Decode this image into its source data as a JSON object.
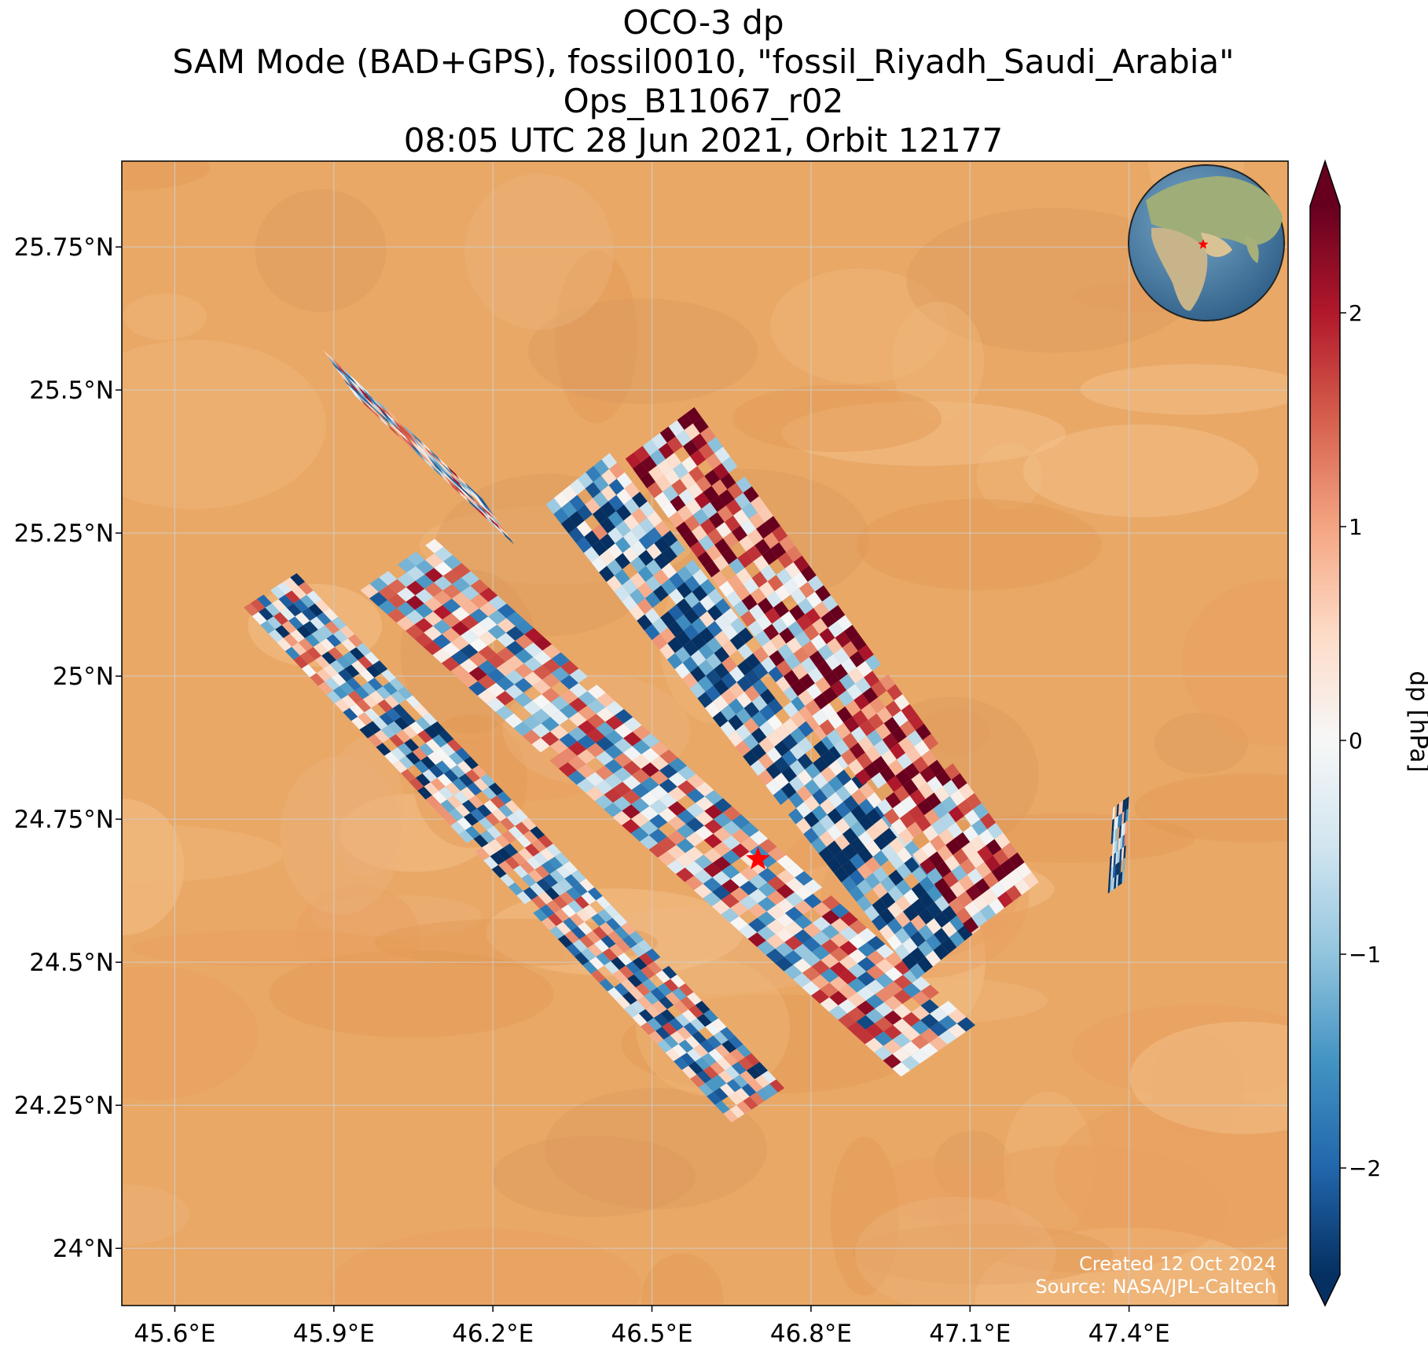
{
  "title": {
    "line1": "OCO-3 dp",
    "line2": "SAM Mode (BAD+GPS), fossil0010, \"fossil_Riyadh_Saudi_Arabia\"",
    "line3": "Ops_B11067_r02",
    "line4": "08:05 UTC 28 Jun 2021, Orbit 12177"
  },
  "map": {
    "x_ticks": [
      {
        "value": 45.6,
        "label": "45.6°E"
      },
      {
        "value": 45.9,
        "label": "45.9°E"
      },
      {
        "value": 46.2,
        "label": "46.2°E"
      },
      {
        "value": 46.5,
        "label": "46.5°E"
      },
      {
        "value": 46.8,
        "label": "46.8°E"
      },
      {
        "value": 47.1,
        "label": "47.1°E"
      },
      {
        "value": 47.4,
        "label": "47.4°E"
      }
    ],
    "y_ticks": [
      {
        "value": 24.0,
        "label": "24°N"
      },
      {
        "value": 24.25,
        "label": "24.25°N"
      },
      {
        "value": 24.5,
        "label": "24.5°N"
      },
      {
        "value": 24.75,
        "label": "24.75°N"
      },
      {
        "value": 25.0,
        "label": "25°N"
      },
      {
        "value": 25.25,
        "label": "25.25°N"
      },
      {
        "value": 25.5,
        "label": "25.5°N"
      },
      {
        "value": 25.75,
        "label": "25.75°N"
      }
    ],
    "lon_range": [
      45.5,
      47.7
    ],
    "lat_range": [
      23.9,
      25.9
    ],
    "gridlines": true,
    "target": {
      "name": "fossil_Riyadh_Saudi_Arabia",
      "lon": 46.7,
      "lat": 24.68,
      "marker": "red-star"
    },
    "basemap": "satellite desert imagery",
    "credit_line1": "Created 12 Oct 2024",
    "credit_line2": "Source: NASA/JPL-Caltech",
    "inset_globe": {
      "marker": "red-star",
      "location": "top-right"
    }
  },
  "colorbar": {
    "label": "dp [hPa]",
    "cmap": "RdBu_r",
    "range": [
      -2.5,
      2.5
    ],
    "extend": "both",
    "ticks": [
      {
        "value": -2,
        "label": "−2"
      },
      {
        "value": -1,
        "label": "−1"
      },
      {
        "value": 0,
        "label": "0"
      },
      {
        "value": 1,
        "label": "1"
      },
      {
        "value": 2,
        "label": "2"
      }
    ]
  },
  "chart_data": {
    "type": "heatmap",
    "title": "OCO-3 dp",
    "variable": "dp",
    "units": "hPa",
    "value_range": [
      -2.5,
      2.5
    ],
    "swaths": [
      {
        "from_lon": 45.88,
        "from_lat": 25.57,
        "to_lon": 46.18,
        "to_lat": 25.31,
        "cross_lon": 0.06,
        "cross_lat": -0.08,
        "dominant": "mixed"
      },
      {
        "from_lon": 45.73,
        "from_lat": 25.12,
        "to_lon": 46.65,
        "to_lat": 24.22,
        "cross_lon": 0.1,
        "cross_lat": 0.06,
        "dominant": "blue-mixed"
      },
      {
        "from_lon": 45.95,
        "from_lat": 25.15,
        "to_lon": 46.97,
        "to_lat": 24.3,
        "cross_lon": 0.14,
        "cross_lat": 0.09,
        "dominant": "blue-red-mixed"
      },
      {
        "from_lon": 46.3,
        "from_lat": 25.3,
        "to_lon": 47.0,
        "to_lat": 24.47,
        "cross_lon": 0.12,
        "cross_lat": 0.09,
        "dominant": "blue"
      },
      {
        "from_lon": 46.45,
        "from_lat": 25.38,
        "to_lon": 47.1,
        "to_lat": 24.55,
        "cross_lon": 0.13,
        "cross_lat": 0.09,
        "dominant": "red"
      },
      {
        "from_lon": 47.37,
        "from_lat": 24.77,
        "to_lon": 47.36,
        "to_lat": 24.62,
        "cross_lon": 0.03,
        "cross_lat": 0.02,
        "dominant": "blue"
      }
    ]
  }
}
